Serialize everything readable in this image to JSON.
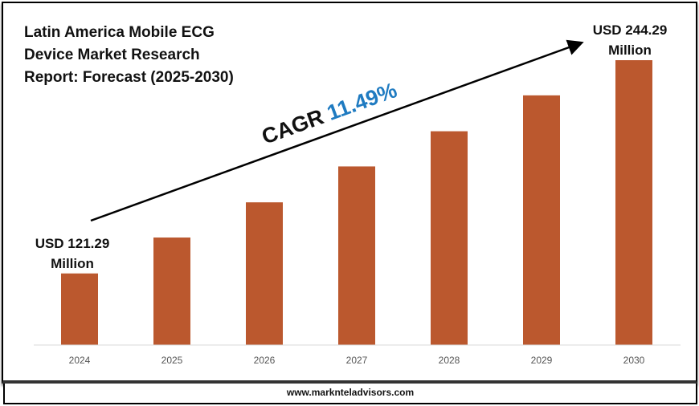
{
  "chart_data": {
    "type": "bar",
    "title": "Latin America Mobile ECG Device Market Research Report: Forecast (2025-2030)",
    "title_lines": [
      "Latin America Mobile ECG",
      "Device Market Research",
      "Report: Forecast (2025-2030)"
    ],
    "categories": [
      "2024",
      "2025",
      "2026",
      "2027",
      "2028",
      "2029",
      "2030"
    ],
    "values": [
      121.29,
      142.0,
      162.3,
      183.0,
      203.3,
      224.0,
      244.29
    ],
    "unit": "USD Million",
    "ylim": [
      80,
      250
    ],
    "grid": false,
    "bar_color": "#BB582E",
    "annotations": {
      "start_label": [
        "USD 121.29",
        "Million"
      ],
      "end_label": [
        "USD 244.29",
        "Million"
      ],
      "cagr_prefix": "CAGR",
      "cagr_value": "11.49%",
      "cagr_color": "#1F7BC1"
    }
  },
  "footer": {
    "website": "www.marknteladvisors.com"
  }
}
